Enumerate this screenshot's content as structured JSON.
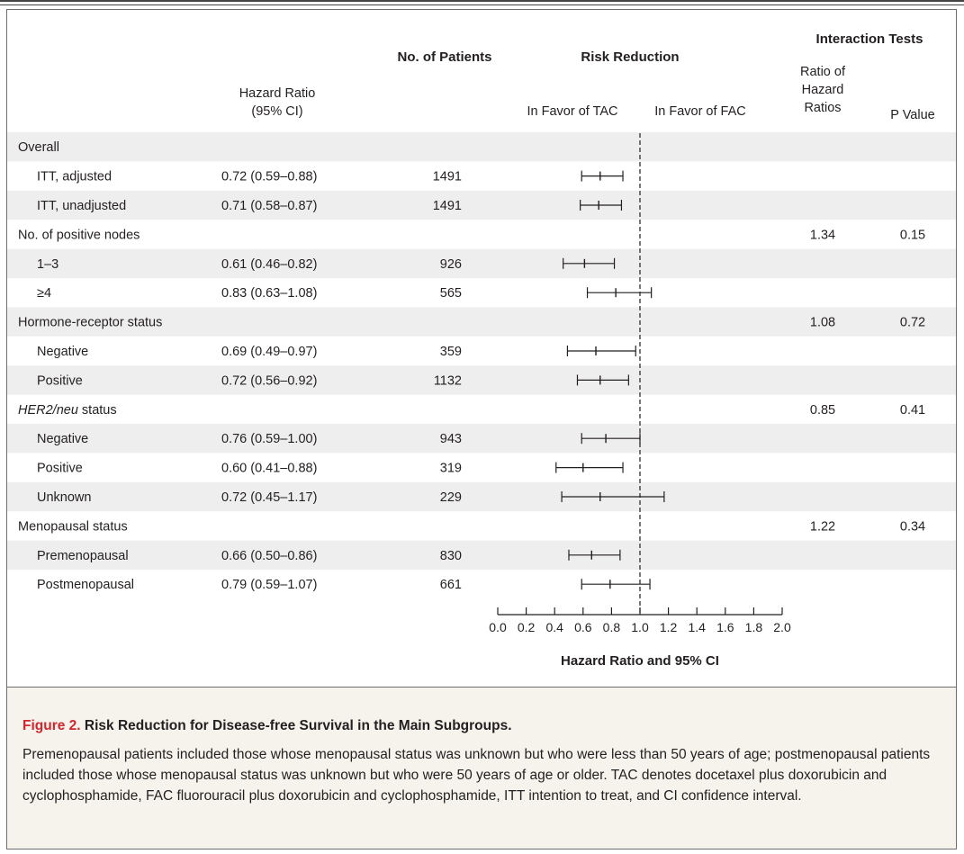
{
  "headers": {
    "hazard_ratio": [
      "Hazard Ratio",
      "(95% CI)"
    ],
    "no_patients": "No. of Patients",
    "risk_reduction": "Risk Reduction",
    "favor_tac": "In Favor of TAC",
    "favor_fac": "In Favor of FAC",
    "interaction_tests": "Interaction Tests",
    "ratio_hr": [
      "Ratio of",
      "Hazard",
      "Ratios"
    ],
    "p_value": "P Value"
  },
  "rows": [
    {
      "label": "Overall",
      "type": "group",
      "hr_text": "",
      "n": "",
      "ratio": "",
      "p": ""
    },
    {
      "label": "ITT, adjusted",
      "type": "item",
      "hr_text": "0.72 (0.59–0.88)",
      "n": "1491",
      "ratio": "",
      "p": ""
    },
    {
      "label": "ITT, unadjusted",
      "type": "item",
      "hr_text": "0.71 (0.58–0.87)",
      "n": "1491",
      "ratio": "",
      "p": ""
    },
    {
      "label": "No. of positive nodes",
      "type": "group",
      "hr_text": "",
      "n": "",
      "ratio": "1.34",
      "p": "0.15"
    },
    {
      "label": "1–3",
      "type": "item",
      "hr_text": "0.61 (0.46–0.82)",
      "n": "926",
      "ratio": "",
      "p": ""
    },
    {
      "label": "≥4",
      "type": "item",
      "hr_text": "0.83 (0.63–1.08)",
      "n": "565",
      "ratio": "",
      "p": ""
    },
    {
      "label": "Hormone-receptor status",
      "type": "group",
      "hr_text": "",
      "n": "",
      "ratio": "1.08",
      "p": "0.72"
    },
    {
      "label": "Negative",
      "type": "item",
      "hr_text": "0.69 (0.49–0.97)",
      "n": "359",
      "ratio": "",
      "p": ""
    },
    {
      "label": "Positive",
      "type": "item",
      "hr_text": "0.72 (0.56–0.92)",
      "n": "1132",
      "ratio": "",
      "p": ""
    },
    {
      "label": "HER2/neu status",
      "type": "group",
      "italic_part": "HER2/neu",
      "rest": " status",
      "hr_text": "",
      "n": "",
      "ratio": "0.85",
      "p": "0.41"
    },
    {
      "label": "Negative",
      "type": "item",
      "hr_text": "0.76 (0.59–1.00)",
      "n": "943",
      "ratio": "",
      "p": ""
    },
    {
      "label": "Positive",
      "type": "item",
      "hr_text": "0.60 (0.41–0.88)",
      "n": "319",
      "ratio": "",
      "p": ""
    },
    {
      "label": "Unknown",
      "type": "item",
      "hr_text": "0.72 (0.45–1.17)",
      "n": "229",
      "ratio": "",
      "p": ""
    },
    {
      "label": "Menopausal status",
      "type": "group",
      "hr_text": "",
      "n": "",
      "ratio": "1.22",
      "p": "0.34"
    },
    {
      "label": "Premenopausal",
      "type": "item",
      "hr_text": "0.66 (0.50–0.86)",
      "n": "830",
      "ratio": "",
      "p": ""
    },
    {
      "label": "Postmenopausal",
      "type": "item",
      "hr_text": "0.79 (0.59–1.07)",
      "n": "661",
      "ratio": "",
      "p": ""
    }
  ],
  "chart_data": {
    "type": "scatter",
    "xlabel": "Hazard Ratio and 95% CI",
    "xlim": [
      0.0,
      2.0
    ],
    "xticks": [
      "0.0",
      "0.2",
      "0.4",
      "0.6",
      "0.8",
      "1.0",
      "1.2",
      "1.4",
      "1.6",
      "1.8",
      "2.0"
    ],
    "reference_line": 1.0,
    "points": [
      {
        "label": "ITT, adjusted",
        "hr": 0.72,
        "lo": 0.59,
        "hi": 0.88
      },
      {
        "label": "ITT, unadjusted",
        "hr": 0.71,
        "lo": 0.58,
        "hi": 0.87
      },
      {
        "label": "1–3",
        "hr": 0.61,
        "lo": 0.46,
        "hi": 0.82
      },
      {
        "label": "≥4",
        "hr": 0.83,
        "lo": 0.63,
        "hi": 1.08
      },
      {
        "label": "Negative",
        "hr": 0.69,
        "lo": 0.49,
        "hi": 0.97
      },
      {
        "label": "Positive",
        "hr": 0.72,
        "lo": 0.56,
        "hi": 0.92
      },
      {
        "label": "Negative",
        "hr": 0.76,
        "lo": 0.59,
        "hi": 1.0
      },
      {
        "label": "Positive",
        "hr": 0.6,
        "lo": 0.41,
        "hi": 0.88
      },
      {
        "label": "Unknown",
        "hr": 0.72,
        "lo": 0.45,
        "hi": 1.17
      },
      {
        "label": "Premenopausal",
        "hr": 0.66,
        "lo": 0.5,
        "hi": 0.86
      },
      {
        "label": "Postmenopausal",
        "hr": 0.79,
        "lo": 0.59,
        "hi": 1.07
      }
    ]
  },
  "caption": {
    "fig_num": "Figure 2.",
    "title": "Risk Reduction for Disease-free Survival in the Main Subgroups.",
    "body": "Premenopausal patients included those whose menopausal status was unknown but who were less than 50 years of age; postmenopausal patients included those whose menopausal status was unknown but who were 50 years of age or older. TAC denotes docetaxel plus doxorubicin and cyclophosphamide, FAC fluorouracil plus doxorubicin and cyclophosphamide, ITT intention to treat, and CI confidence interval."
  },
  "colors": {
    "row_shade": "#eeeeef",
    "caption_bg": "#f6f3ec",
    "figure_number": "#d0272f"
  }
}
